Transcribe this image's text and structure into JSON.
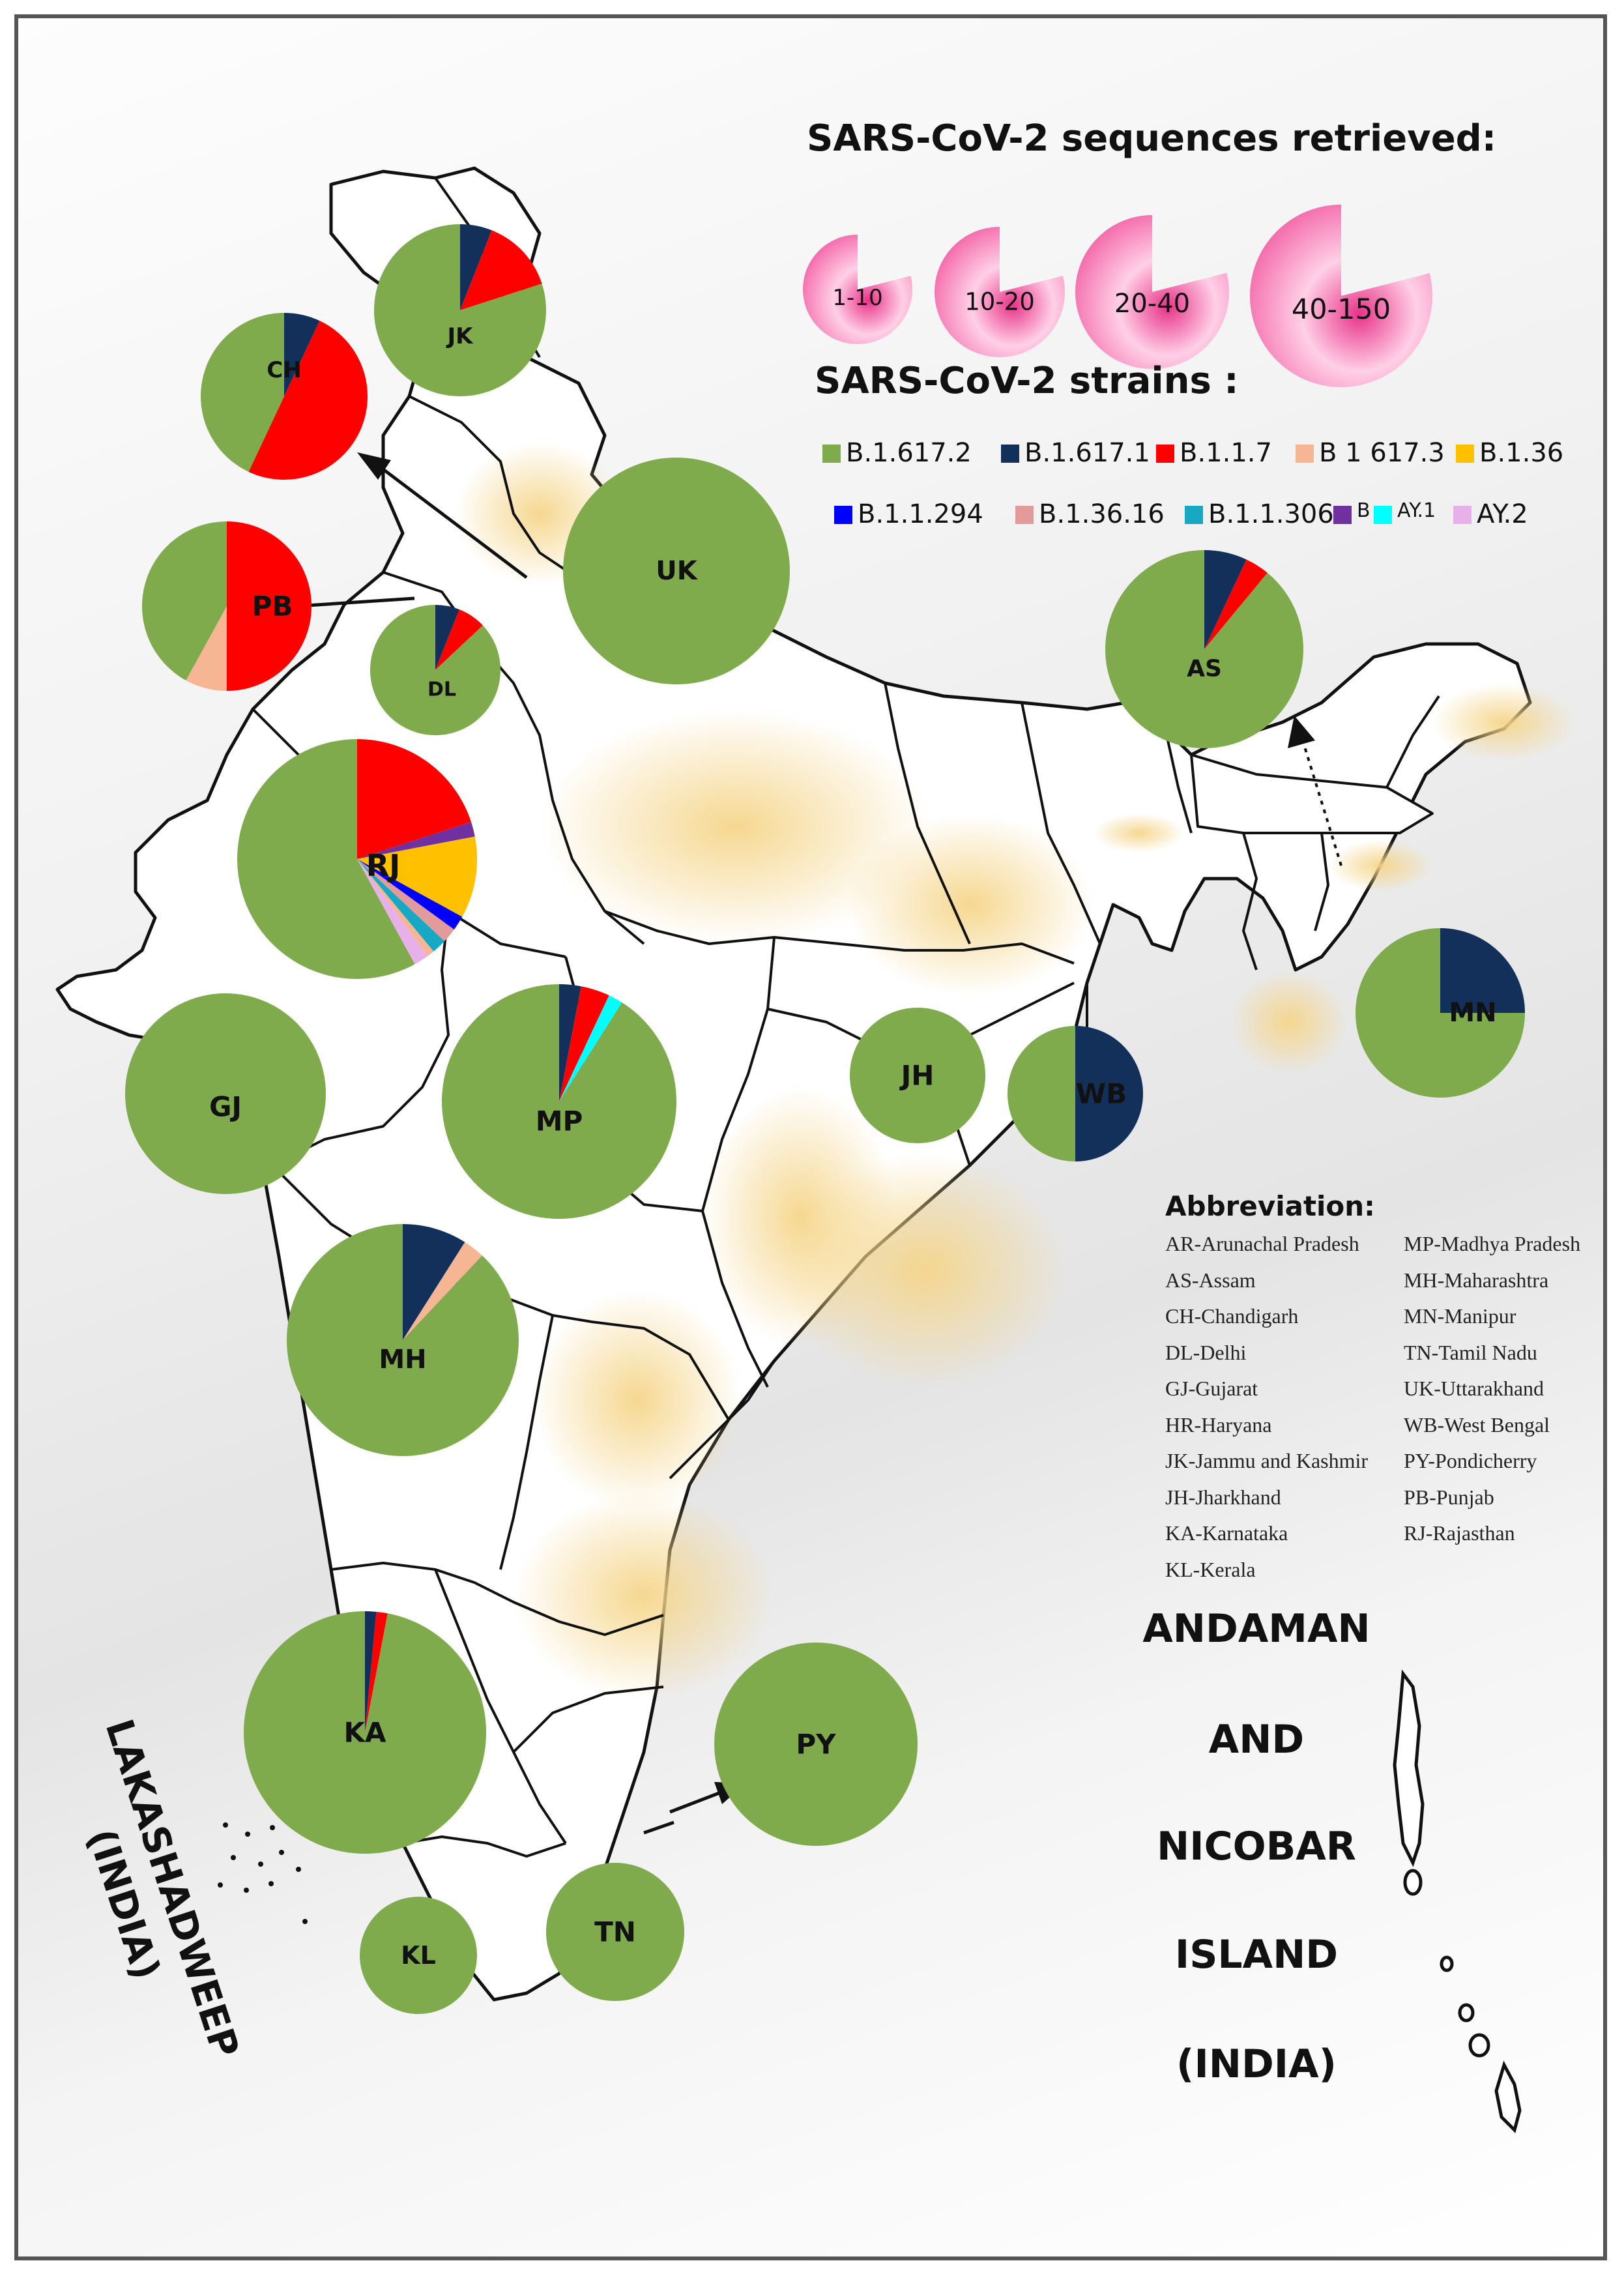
{
  "colors": {
    "B.1.617.2": "#7fab4c",
    "B.1.617.1": "#13305a",
    "B.1.1.7": "#ff0000",
    "B 1 617.3": "#f6b593",
    "B.1.36": "#ffc000",
    "B.1.1.294": "#0000ff",
    "B.1.36.16": "#e39a9a",
    "B.1.1.306": "#17a8c4",
    "B": "#7030a0",
    "AY.1": "#00ffff",
    "AY.2": "#e8b0e8"
  },
  "size_legend": {
    "title": "SARS-CoV-2 sequences retrieved:",
    "bins": [
      "1-10",
      "10-20",
      "20-40",
      "40-150"
    ]
  },
  "strain_legend": {
    "title": "SARS-CoV-2 strains :",
    "row1": [
      "B.1.617.2",
      "B.1.617.1",
      "B.1.1.7",
      "B 1 617.3",
      "B.1.36"
    ],
    "row2": [
      "B.1.1.294",
      "B.1.36.16",
      "B.1.1.306",
      "B",
      "AY.1",
      "AY.2"
    ]
  },
  "states": [
    {
      "code": "JK",
      "slices": [
        [
          "B.1.617.2",
          80
        ],
        [
          "B.1.617.1",
          6
        ],
        [
          "B.1.1.7",
          14
        ]
      ]
    },
    {
      "code": "CH",
      "slices": [
        [
          "B.1.617.2",
          43
        ],
        [
          "B.1.617.1",
          7
        ],
        [
          "B.1.1.7",
          50
        ]
      ]
    },
    {
      "code": "PB",
      "slices": [
        [
          "B.1.617.2",
          42
        ],
        [
          "B.1.1.7",
          50
        ],
        [
          "B 1 617.3",
          8
        ]
      ]
    },
    {
      "code": "DL",
      "slices": [
        [
          "B.1.617.2",
          87
        ],
        [
          "B.1.617.1",
          6
        ],
        [
          "B.1.1.7",
          7
        ]
      ]
    },
    {
      "code": "UK",
      "slices": [
        [
          "B.1.617.2",
          100
        ]
      ]
    },
    {
      "code": "AS",
      "slices": [
        [
          "B.1.617.2",
          89
        ],
        [
          "B.1.617.1",
          7
        ],
        [
          "B.1.1.7",
          4
        ]
      ]
    },
    {
      "code": "RJ",
      "slices": [
        [
          "B.1.617.2",
          58
        ],
        [
          "B.1.1.7",
          20
        ],
        [
          "B",
          2
        ],
        [
          "B.1.36",
          11
        ],
        [
          "B.1.1.294",
          2
        ],
        [
          "B.1.36.16",
          2
        ],
        [
          "B.1.1.306",
          2
        ],
        [
          "B 1 617.3",
          1
        ],
        [
          "AY.2",
          2
        ]
      ]
    },
    {
      "code": "GJ",
      "slices": [
        [
          "B.1.617.2",
          100
        ]
      ]
    },
    {
      "code": "MP",
      "slices": [
        [
          "B.1.617.2",
          91
        ],
        [
          "B.1.617.1",
          3
        ],
        [
          "B.1.1.7",
          4
        ],
        [
          "AY.1",
          2
        ]
      ]
    },
    {
      "code": "JH",
      "slices": [
        [
          "B.1.617.2",
          100
        ]
      ]
    },
    {
      "code": "WB",
      "slices": [
        [
          "B.1.617.2",
          50
        ],
        [
          "B.1.617.1",
          50
        ]
      ]
    },
    {
      "code": "MN",
      "slices": [
        [
          "B.1.617.2",
          75
        ],
        [
          "B.1.617.1",
          25
        ]
      ]
    },
    {
      "code": "MH",
      "slices": [
        [
          "B.1.617.2",
          88
        ],
        [
          "B.1.617.1",
          9
        ],
        [
          "B 1 617.3",
          3
        ]
      ]
    },
    {
      "code": "KA",
      "slices": [
        [
          "B.1.617.2",
          97
        ],
        [
          "B.1.617.1",
          1.5
        ],
        [
          "B.1.1.7",
          1.5
        ]
      ]
    },
    {
      "code": "PY",
      "slices": [
        [
          "B.1.617.2",
          100
        ]
      ]
    },
    {
      "code": "TN",
      "slices": [
        [
          "B.1.617.2",
          100
        ]
      ]
    },
    {
      "code": "KL",
      "slices": [
        [
          "B.1.617.2",
          100
        ]
      ]
    }
  ],
  "abbreviation": {
    "title": "Abbreviation:",
    "col1": [
      "AR-Arunachal Pradesh",
      "AS-Assam",
      "CH-Chandigarh",
      "DL-Delhi",
      "GJ-Gujarat",
      "HR-Haryana",
      "JK-Jammu and Kashmir",
      "JH-Jharkhand",
      "KA-Karnataka",
      "KL-Kerala"
    ],
    "col2": [
      "MP-Madhya Pradesh",
      "MH-Maharashtra",
      "MN-Manipur",
      "TN-Tamil Nadu",
      "UK-Uttarakhand",
      "WB-West Bengal",
      "PY-Pondicherry",
      "PB-Punjab",
      "RJ-Rajasthan"
    ]
  },
  "andaman": [
    "ANDAMAN",
    "AND",
    "NICOBAR",
    "ISLAND",
    "(INDIA)"
  ],
  "lakshadweep": [
    "LAKASHADWEEP",
    "(INDIA)"
  ]
}
